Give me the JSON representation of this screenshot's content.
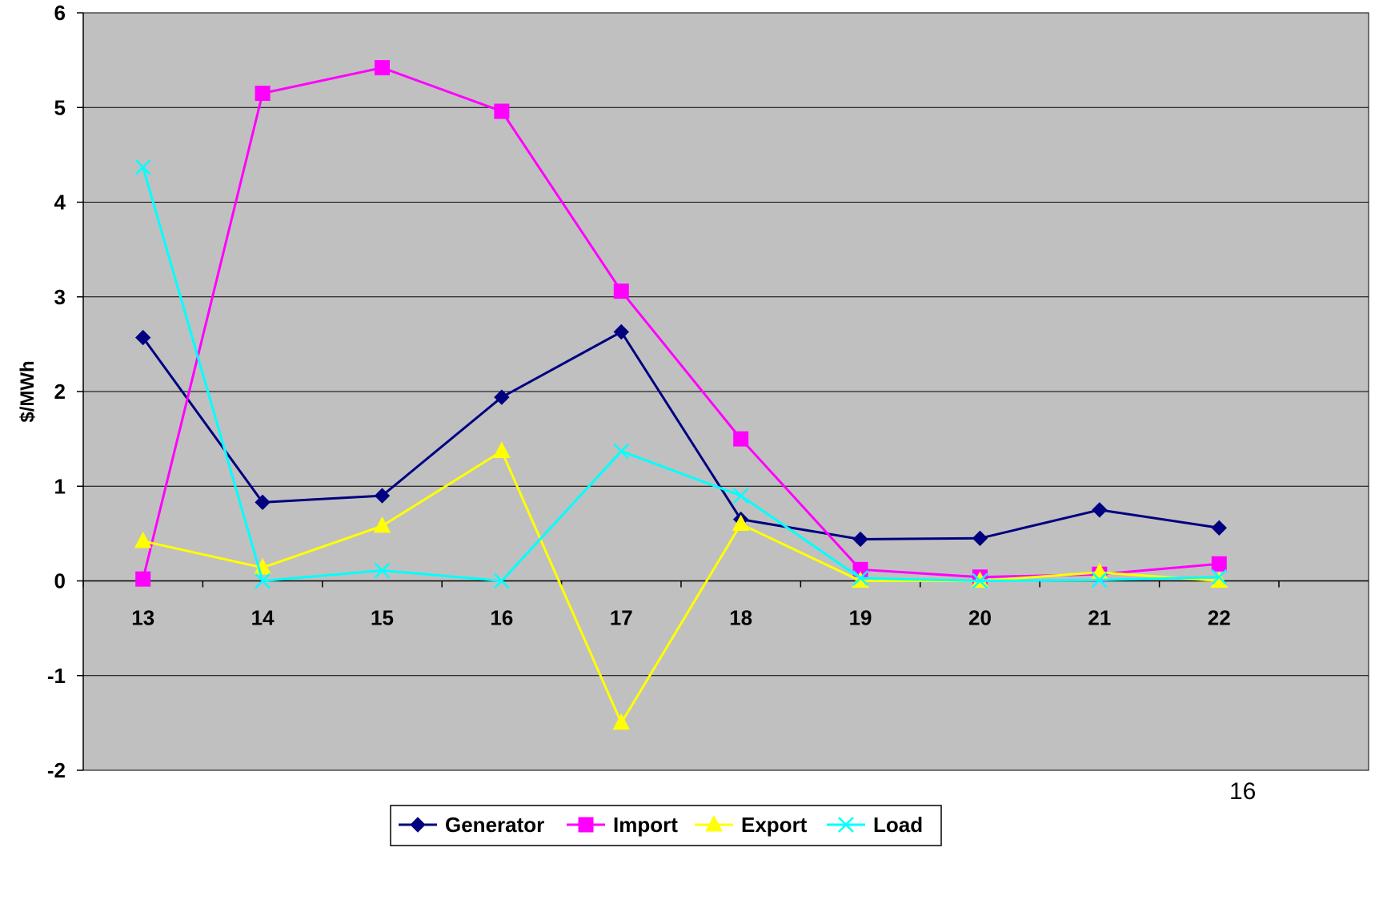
{
  "page_number": "16",
  "chart_data": {
    "type": "line",
    "title": "",
    "xlabel": "",
    "ylabel": "$/MWh",
    "categories": [
      "13",
      "14",
      "15",
      "16",
      "17",
      "18",
      "19",
      "20",
      "21",
      "22"
    ],
    "ylim": [
      -2,
      6
    ],
    "yticks": [
      -2,
      -1,
      0,
      1,
      2,
      3,
      4,
      5,
      6
    ],
    "grid": true,
    "legend_position": "bottom",
    "plot_background": "#C0C0C0",
    "series": [
      {
        "name": "Generator",
        "color": "#000080",
        "marker": "diamond",
        "values": [
          2.57,
          0.83,
          0.9,
          1.94,
          2.63,
          0.65,
          0.44,
          0.45,
          0.75,
          0.56
        ]
      },
      {
        "name": "Import",
        "color": "#FF00FF",
        "marker": "square",
        "values": [
          0.02,
          5.15,
          5.42,
          4.96,
          3.06,
          1.5,
          0.12,
          0.04,
          0.07,
          0.18
        ]
      },
      {
        "name": "Export",
        "color": "#FFFF00",
        "marker": "triangle",
        "values": [
          0.42,
          0.14,
          0.58,
          1.37,
          -1.5,
          0.6,
          0.0,
          0.0,
          0.09,
          0.0
        ]
      },
      {
        "name": "Load",
        "color": "#00FFFF",
        "marker": "x",
        "values": [
          4.37,
          0.0,
          0.11,
          0.0,
          1.37,
          0.9,
          0.03,
          0.0,
          0.01,
          0.04
        ]
      }
    ]
  }
}
